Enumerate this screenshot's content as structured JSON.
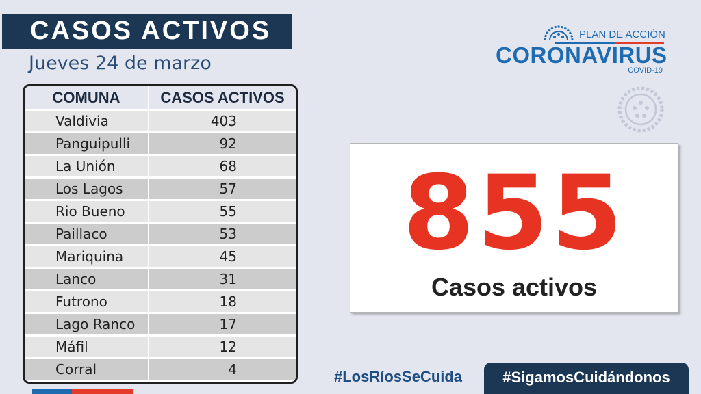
{
  "header": {
    "title": "CASOS ACTIVOS",
    "date": "Jueves 24 de marzo"
  },
  "table": {
    "columns": [
      "COMUNA",
      "CASOS ACTIVOS"
    ],
    "rows": [
      {
        "comuna": "Valdivia",
        "casos": "403"
      },
      {
        "comuna": "Panguipulli",
        "casos": "92"
      },
      {
        "comuna": "La Unión",
        "casos": "68"
      },
      {
        "comuna": "Los Lagos",
        "casos": "57"
      },
      {
        "comuna": "Rio Bueno",
        "casos": "55"
      },
      {
        "comuna": "Paillaco",
        "casos": "53"
      },
      {
        "comuna": "Mariquina",
        "casos": "45"
      },
      {
        "comuna": "Lanco",
        "casos": "31"
      },
      {
        "comuna": "Futrono",
        "casos": "18"
      },
      {
        "comuna": "Lago Ranco",
        "casos": "17"
      },
      {
        "comuna": "Máfil",
        "casos": "12"
      },
      {
        "comuna": "Corral",
        "casos": "4"
      }
    ]
  },
  "logo": {
    "plan": "PLAN DE ACCIÓN",
    "main": "CORONAVIRUS",
    "sub": "COVID-19",
    "icon": "virus-icon"
  },
  "summary": {
    "total": "855",
    "label": "Casos activos"
  },
  "hashtags": {
    "primary": "#LosRíosSeCuida",
    "secondary": "#SigamosCuidándonos"
  },
  "colors": {
    "navy": "#1b3753",
    "accent_blue": "#1f6bb2",
    "accent_red": "#e73422",
    "background": "#e3e6ef"
  }
}
